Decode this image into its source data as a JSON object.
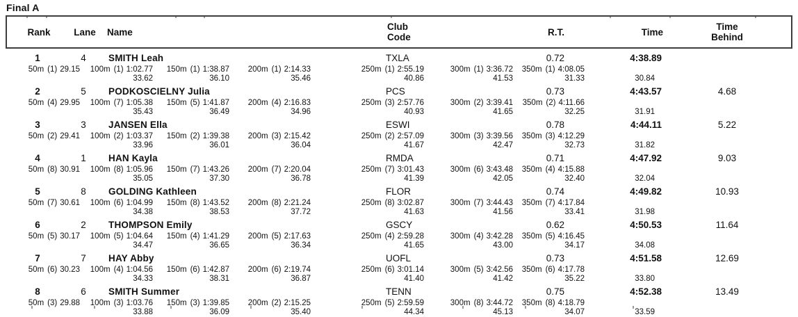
{
  "title": "Final A",
  "table": {
    "headers": {
      "rank": "Rank",
      "lane": "Lane",
      "name": "Name",
      "club": "Club\nCode",
      "rt": "R.T.",
      "time": "Time",
      "behind": "Time\nBehind"
    },
    "results": [
      {
        "rank": "1",
        "lane": "4",
        "name": "SMITH Leah",
        "club": "TXLA",
        "rt": "0.72",
        "time": "4:38.89",
        "behind": "",
        "splits": [
          {
            "label": "50m",
            "place": "(1)",
            "cum": "29.15",
            "diff": ""
          },
          {
            "label": "100m",
            "place": "(1)",
            "cum": "1:02.77",
            "diff": "33.62"
          },
          {
            "label": "150m",
            "place": "(1)",
            "cum": "1:38.87",
            "diff": "36.10"
          },
          {
            "label": "200m",
            "place": "(1)",
            "cum": "2:14.33",
            "diff": "35.46"
          },
          {
            "label": "250m",
            "place": "(1)",
            "cum": "2:55.19",
            "diff": "40.86"
          },
          {
            "label": "300m",
            "place": "(1)",
            "cum": "3:36.72",
            "diff": "41.53"
          },
          {
            "label": "350m",
            "place": "(1)",
            "cum": "4:08.05",
            "diff": "31.33"
          }
        ],
        "final_split": "30.84"
      },
      {
        "rank": "2",
        "lane": "5",
        "name": "PODKOSCIELNY Julia",
        "club": "PCS",
        "rt": "0.73",
        "time": "4:43.57",
        "behind": "4.68",
        "splits": [
          {
            "label": "50m",
            "place": "(4)",
            "cum": "29.95",
            "diff": ""
          },
          {
            "label": "100m",
            "place": "(7)",
            "cum": "1:05.38",
            "diff": "35.43"
          },
          {
            "label": "150m",
            "place": "(5)",
            "cum": "1:41.87",
            "diff": "36.49"
          },
          {
            "label": "200m",
            "place": "(4)",
            "cum": "2:16.83",
            "diff": "34.96"
          },
          {
            "label": "250m",
            "place": "(3)",
            "cum": "2:57.76",
            "diff": "40.93"
          },
          {
            "label": "300m",
            "place": "(2)",
            "cum": "3:39.41",
            "diff": "41.65"
          },
          {
            "label": "350m",
            "place": "(2)",
            "cum": "4:11.66",
            "diff": "32.25"
          }
        ],
        "final_split": "31.91"
      },
      {
        "rank": "3",
        "lane": "3",
        "name": "JANSEN Ella",
        "club": "ESWI",
        "rt": "0.78",
        "time": "4:44.11",
        "behind": "5.22",
        "splits": [
          {
            "label": "50m",
            "place": "(2)",
            "cum": "29.41",
            "diff": ""
          },
          {
            "label": "100m",
            "place": "(2)",
            "cum": "1:03.37",
            "diff": "33.96"
          },
          {
            "label": "150m",
            "place": "(2)",
            "cum": "1:39.38",
            "diff": "36.01"
          },
          {
            "label": "200m",
            "place": "(3)",
            "cum": "2:15.42",
            "diff": "36.04"
          },
          {
            "label": "250m",
            "place": "(2)",
            "cum": "2:57.09",
            "diff": "41.67"
          },
          {
            "label": "300m",
            "place": "(3)",
            "cum": "3:39.56",
            "diff": "42.47"
          },
          {
            "label": "350m",
            "place": "(3)",
            "cum": "4:12.29",
            "diff": "32.73"
          }
        ],
        "final_split": "31.82"
      },
      {
        "rank": "4",
        "lane": "1",
        "name": "HAN Kayla",
        "club": "RMDA",
        "rt": "0.71",
        "time": "4:47.92",
        "behind": "9.03",
        "splits": [
          {
            "label": "50m",
            "place": "(8)",
            "cum": "30.91",
            "diff": ""
          },
          {
            "label": "100m",
            "place": "(8)",
            "cum": "1:05.96",
            "diff": "35.05"
          },
          {
            "label": "150m",
            "place": "(7)",
            "cum": "1:43.26",
            "diff": "37.30"
          },
          {
            "label": "200m",
            "place": "(7)",
            "cum": "2:20.04",
            "diff": "36.78"
          },
          {
            "label": "250m",
            "place": "(7)",
            "cum": "3:01.43",
            "diff": "41.39"
          },
          {
            "label": "300m",
            "place": "(6)",
            "cum": "3:43.48",
            "diff": "42.05"
          },
          {
            "label": "350m",
            "place": "(4)",
            "cum": "4:15.88",
            "diff": "32.40"
          }
        ],
        "final_split": "32.04"
      },
      {
        "rank": "5",
        "lane": "8",
        "name": "GOLDING Kathleen",
        "club": "FLOR",
        "rt": "0.74",
        "time": "4:49.82",
        "behind": "10.93",
        "splits": [
          {
            "label": "50m",
            "place": "(7)",
            "cum": "30.61",
            "diff": ""
          },
          {
            "label": "100m",
            "place": "(6)",
            "cum": "1:04.99",
            "diff": "34.38"
          },
          {
            "label": "150m",
            "place": "(8)",
            "cum": "1:43.52",
            "diff": "38.53"
          },
          {
            "label": "200m",
            "place": "(8)",
            "cum": "2:21.24",
            "diff": "37.72"
          },
          {
            "label": "250m",
            "place": "(8)",
            "cum": "3:02.87",
            "diff": "41.63"
          },
          {
            "label": "300m",
            "place": "(7)",
            "cum": "3:44.43",
            "diff": "41.56"
          },
          {
            "label": "350m",
            "place": "(7)",
            "cum": "4:17.84",
            "diff": "33.41"
          }
        ],
        "final_split": "31.98"
      },
      {
        "rank": "6",
        "lane": "2",
        "name": "THOMPSON Emily",
        "club": "GSCY",
        "rt": "0.62",
        "time": "4:50.53",
        "behind": "11.64",
        "splits": [
          {
            "label": "50m",
            "place": "(5)",
            "cum": "30.17",
            "diff": ""
          },
          {
            "label": "100m",
            "place": "(5)",
            "cum": "1:04.64",
            "diff": "34.47"
          },
          {
            "label": "150m",
            "place": "(4)",
            "cum": "1:41.29",
            "diff": "36.65"
          },
          {
            "label": "200m",
            "place": "(5)",
            "cum": "2:17.63",
            "diff": "36.34"
          },
          {
            "label": "250m",
            "place": "(4)",
            "cum": "2:59.28",
            "diff": "41.65"
          },
          {
            "label": "300m",
            "place": "(4)",
            "cum": "3:42.28",
            "diff": "43.00"
          },
          {
            "label": "350m",
            "place": "(5)",
            "cum": "4:16.45",
            "diff": "34.17"
          }
        ],
        "final_split": "34.08"
      },
      {
        "rank": "7",
        "lane": "7",
        "name": "HAY Abby",
        "club": "UOFL",
        "rt": "0.73",
        "time": "4:51.58",
        "behind": "12.69",
        "splits": [
          {
            "label": "50m",
            "place": "(6)",
            "cum": "30.23",
            "diff": ""
          },
          {
            "label": "100m",
            "place": "(4)",
            "cum": "1:04.56",
            "diff": "34.33"
          },
          {
            "label": "150m",
            "place": "(6)",
            "cum": "1:42.87",
            "diff": "38.31"
          },
          {
            "label": "200m",
            "place": "(6)",
            "cum": "2:19.74",
            "diff": "36.87"
          },
          {
            "label": "250m",
            "place": "(6)",
            "cum": "3:01.14",
            "diff": "41.40"
          },
          {
            "label": "300m",
            "place": "(5)",
            "cum": "3:42.56",
            "diff": "41.42"
          },
          {
            "label": "350m",
            "place": "(6)",
            "cum": "4:17.78",
            "diff": "35.22"
          }
        ],
        "final_split": "33.80"
      },
      {
        "rank": "8",
        "lane": "6",
        "name": "SMITH Summer",
        "club": "TENN",
        "rt": "0.75",
        "time": "4:52.38",
        "behind": "13.49",
        "splits": [
          {
            "label": "50m",
            "place": "(3)",
            "cum": "29.88",
            "diff": ""
          },
          {
            "label": "100m",
            "place": "(3)",
            "cum": "1:03.76",
            "diff": "33.88"
          },
          {
            "label": "150m",
            "place": "(3)",
            "cum": "1:39.85",
            "diff": "36.09"
          },
          {
            "label": "200m",
            "place": "(2)",
            "cum": "2:15.25",
            "diff": "35.40"
          },
          {
            "label": "250m",
            "place": "(5)",
            "cum": "2:59.59",
            "diff": "44.34"
          },
          {
            "label": "300m",
            "place": "(8)",
            "cum": "3:44.72",
            "diff": "45.13"
          },
          {
            "label": "350m",
            "place": "(8)",
            "cum": "4:18.79",
            "diff": "34.07"
          }
        ],
        "final_split": "33.59"
      }
    ]
  }
}
